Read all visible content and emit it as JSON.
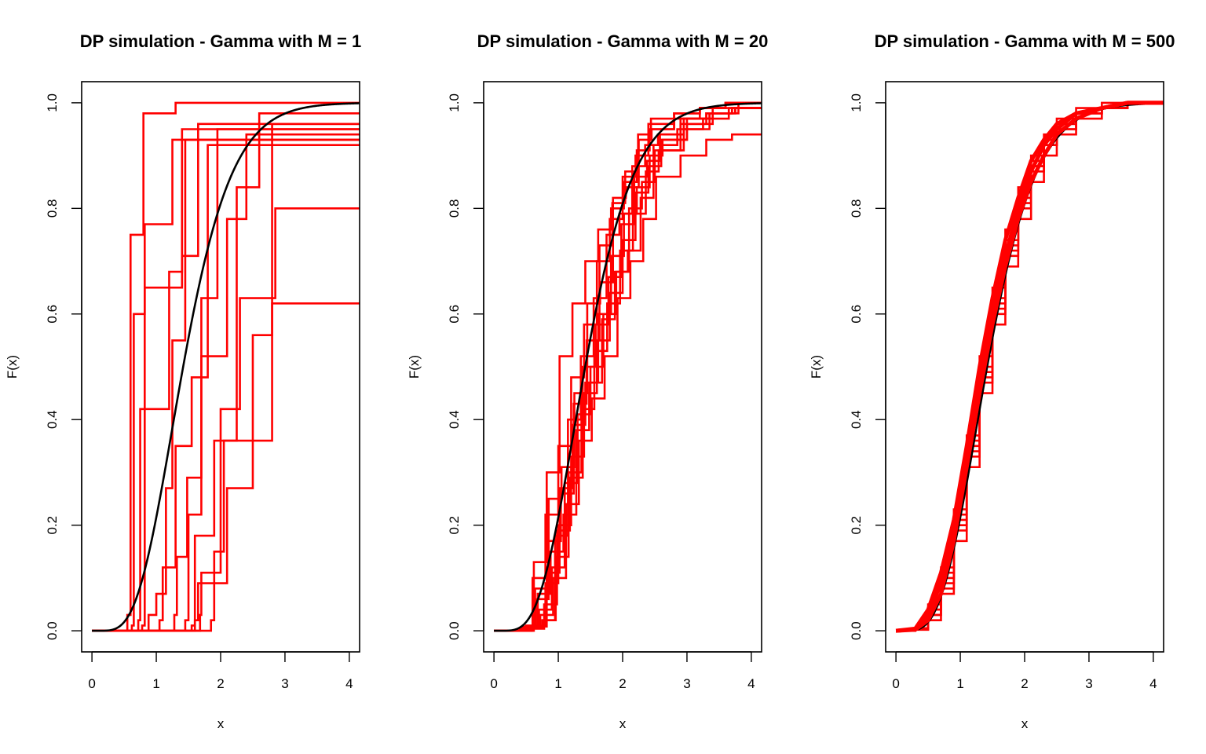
{
  "figure_background": "#ffffff",
  "chart_data": [
    {
      "type": "line",
      "title": "DP simulation - Gamma with M = 1",
      "xlabel": "x",
      "ylabel": "F(x)",
      "xlim": [
        -0.16,
        4.16
      ],
      "ylim": [
        -0.04,
        1.04
      ],
      "xticks": [
        "0",
        "1",
        "2",
        "3",
        "4"
      ],
      "yticks": [
        "0.0",
        "0.2",
        "0.4",
        "0.6",
        "0.8",
        "1.0"
      ],
      "grid": false,
      "legend": "none",
      "reference_curve": {
        "color": "#000000",
        "distribution": "Gamma",
        "shape": 6,
        "rate": 4
      },
      "simulation_color": "#ff0000",
      "simulations": [
        {
          "x": [
            0,
            0.55,
            0.6,
            0.8,
            1.3,
            4.2
          ],
          "y": [
            0,
            0.03,
            0.75,
            0.98,
            1,
            1
          ]
        },
        {
          "x": [
            0,
            0.62,
            0.65,
            0.82,
            1.25,
            4.2
          ],
          "y": [
            0,
            0.01,
            0.6,
            0.77,
            0.93,
            1
          ]
        },
        {
          "x": [
            0,
            0.72,
            0.75,
            1.2,
            1.4,
            4.2
          ],
          "y": [
            0,
            0.02,
            0.42,
            0.68,
            0.95,
            1
          ]
        },
        {
          "x": [
            0,
            0.78,
            0.82,
            1.4,
            1.65,
            4.2
          ],
          "y": [
            0,
            0.01,
            0.65,
            0.71,
            0.96,
            1
          ]
        },
        {
          "x": [
            0,
            0.88,
            1.0,
            1.15,
            1.25,
            1.45,
            4.2
          ],
          "y": [
            0,
            0.03,
            0.07,
            0.27,
            0.55,
            0.93,
            1
          ]
        },
        {
          "x": [
            0,
            1.05,
            1.1,
            1.3,
            1.55,
            1.8,
            4.2
          ],
          "y": [
            0,
            0.02,
            0.12,
            0.35,
            0.48,
            0.92,
            1
          ]
        },
        {
          "x": [
            0,
            1.28,
            1.32,
            1.48,
            1.7,
            1.95,
            4.2
          ],
          "y": [
            0,
            0.03,
            0.14,
            0.29,
            0.63,
            0.95,
            1
          ]
        },
        {
          "x": [
            0,
            1.45,
            1.5,
            1.7,
            2.1,
            2.4,
            4.2
          ],
          "y": [
            0,
            0.02,
            0.22,
            0.52,
            0.78,
            0.94,
            1
          ]
        },
        {
          "x": [
            0,
            1.55,
            1.6,
            1.9,
            2.25,
            2.6,
            4.2
          ],
          "y": [
            0,
            0.01,
            0.18,
            0.36,
            0.84,
            0.98,
            1
          ]
        },
        {
          "x": [
            0,
            1.6,
            1.65,
            2.1,
            2.5,
            2.8,
            4.2
          ],
          "y": [
            0,
            0.02,
            0.09,
            0.27,
            0.56,
            0.96,
            1
          ]
        },
        {
          "x": [
            0,
            1.68,
            1.7,
            2.0,
            2.3,
            2.85,
            4.2
          ],
          "y": [
            0,
            0.03,
            0.11,
            0.42,
            0.63,
            0.8,
            1
          ]
        },
        {
          "x": [
            0,
            1.85,
            1.9,
            2.05,
            2.8,
            3.55,
            4.2
          ],
          "y": [
            0,
            0.02,
            0.15,
            0.36,
            0.62,
            0.62,
            1
          ]
        }
      ]
    },
    {
      "type": "line",
      "title": "DP simulation - Gamma with M = 20",
      "xlabel": "x",
      "ylabel": "F(x)",
      "xlim": [
        -0.16,
        4.16
      ],
      "ylim": [
        -0.04,
        1.04
      ],
      "xticks": [
        "0",
        "1",
        "2",
        "3",
        "4"
      ],
      "yticks": [
        "0.0",
        "0.2",
        "0.4",
        "0.6",
        "0.8",
        "1.0"
      ],
      "grid": false,
      "legend": "none",
      "reference_curve": {
        "color": "#000000",
        "distribution": "Gamma",
        "shape": 6,
        "rate": 4
      },
      "simulation_color": "#ff0000",
      "simulations": [
        {
          "x": [
            0,
            0.4,
            0.6,
            0.8,
            1.0,
            1.2,
            1.4,
            1.6,
            1.8,
            2.0,
            2.2,
            2.4,
            2.8,
            3.2,
            3.6,
            4.2
          ],
          "y": [
            0,
            0.005,
            0.1,
            0.22,
            0.35,
            0.48,
            0.58,
            0.7,
            0.78,
            0.86,
            0.9,
            0.96,
            0.98,
            0.99,
            1.0,
            1.0
          ]
        },
        {
          "x": [
            0,
            0.45,
            0.65,
            0.85,
            1.05,
            1.25,
            1.45,
            1.65,
            1.85,
            2.05,
            2.25,
            2.45,
            2.8,
            3.2,
            3.6,
            4.2
          ],
          "y": [
            0,
            0.008,
            0.06,
            0.25,
            0.31,
            0.45,
            0.62,
            0.66,
            0.82,
            0.84,
            0.93,
            0.95,
            0.97,
            0.99,
            1.0,
            1.0
          ]
        },
        {
          "x": [
            0,
            0.5,
            0.7,
            0.9,
            1.1,
            1.3,
            1.5,
            1.7,
            1.9,
            2.1,
            2.3,
            2.5,
            2.9,
            3.3,
            3.7,
            4.2
          ],
          "y": [
            0,
            0.01,
            0.04,
            0.12,
            0.28,
            0.41,
            0.5,
            0.6,
            0.68,
            0.8,
            0.85,
            0.91,
            0.96,
            0.98,
            0.99,
            1.0
          ]
        },
        {
          "x": [
            0,
            0.55,
            0.75,
            0.95,
            1.15,
            1.35,
            1.55,
            1.75,
            1.95,
            2.15,
            2.35,
            2.55,
            2.9,
            3.3,
            3.7,
            4.2
          ],
          "y": [
            0,
            0.005,
            0.02,
            0.18,
            0.4,
            0.52,
            0.63,
            0.75,
            0.79,
            0.88,
            0.92,
            0.94,
            0.97,
            0.98,
            0.99,
            1.0
          ]
        },
        {
          "x": [
            0,
            0.6,
            0.8,
            1.0,
            1.2,
            1.4,
            1.6,
            1.8,
            2.0,
            2.2,
            2.4,
            2.6,
            3.0,
            3.4,
            3.8,
            4.2
          ],
          "y": [
            0,
            0.01,
            0.09,
            0.2,
            0.33,
            0.45,
            0.55,
            0.64,
            0.74,
            0.83,
            0.88,
            0.93,
            0.97,
            0.99,
            1.0,
            1.0
          ]
        },
        {
          "x": [
            0,
            0.42,
            0.62,
            0.82,
            1.02,
            1.22,
            1.42,
            1.62,
            1.82,
            2.02,
            2.22,
            2.42,
            2.8,
            3.2,
            3.6,
            4.2
          ],
          "y": [
            0,
            0.006,
            0.13,
            0.3,
            0.52,
            0.62,
            0.7,
            0.76,
            0.8,
            0.85,
            0.91,
            0.95,
            0.98,
            0.99,
            1.0,
            1.0
          ]
        },
        {
          "x": [
            0,
            0.48,
            0.68,
            0.88,
            1.08,
            1.28,
            1.48,
            1.68,
            1.88,
            2.08,
            2.28,
            2.48,
            2.85,
            3.25,
            3.65,
            4.2
          ],
          "y": [
            0,
            0.007,
            0.07,
            0.15,
            0.22,
            0.38,
            0.47,
            0.59,
            0.68,
            0.72,
            0.82,
            0.92,
            0.95,
            0.97,
            0.99,
            1.0
          ]
        },
        {
          "x": [
            0,
            0.52,
            0.72,
            0.92,
            1.12,
            1.32,
            1.52,
            1.72,
            1.92,
            2.12,
            2.32,
            2.52,
            2.9,
            3.3,
            3.7,
            4.2
          ],
          "y": [
            0,
            0.005,
            0.03,
            0.1,
            0.24,
            0.36,
            0.44,
            0.52,
            0.63,
            0.7,
            0.78,
            0.86,
            0.9,
            0.93,
            0.94,
            0.94
          ]
        },
        {
          "x": [
            0,
            0.58,
            0.78,
            0.98,
            1.18,
            1.38,
            1.58,
            1.78,
            1.98,
            2.18,
            2.38,
            2.58,
            2.95,
            3.35,
            3.75,
            4.2
          ],
          "y": [
            0,
            0.004,
            0.05,
            0.19,
            0.29,
            0.5,
            0.58,
            0.67,
            0.77,
            0.86,
            0.89,
            0.94,
            0.97,
            0.98,
            0.99,
            1.0
          ]
        },
        {
          "x": [
            0,
            0.62,
            0.82,
            1.02,
            1.22,
            1.42,
            1.62,
            1.82,
            2.02,
            2.22,
            2.42,
            2.62,
            3.0,
            3.4,
            3.8,
            4.2
          ],
          "y": [
            0,
            0.008,
            0.11,
            0.27,
            0.39,
            0.47,
            0.6,
            0.71,
            0.79,
            0.84,
            0.9,
            0.93,
            0.96,
            0.98,
            0.99,
            1.0
          ]
        },
        {
          "x": [
            0,
            0.44,
            0.64,
            0.84,
            1.04,
            1.24,
            1.44,
            1.64,
            1.84,
            2.04,
            2.24,
            2.44,
            2.8,
            3.2,
            3.6,
            4.2
          ],
          "y": [
            0,
            0.006,
            0.08,
            0.17,
            0.26,
            0.43,
            0.55,
            0.73,
            0.81,
            0.87,
            0.94,
            0.97,
            0.98,
            0.99,
            1.0,
            1.0
          ]
        },
        {
          "x": [
            0,
            0.56,
            0.76,
            0.96,
            1.16,
            1.36,
            1.56,
            1.76,
            1.96,
            2.16,
            2.36,
            2.56,
            2.95,
            3.35,
            3.75,
            4.2
          ],
          "y": [
            0,
            0.005,
            0.02,
            0.14,
            0.3,
            0.42,
            0.53,
            0.62,
            0.72,
            0.79,
            0.87,
            0.91,
            0.95,
            0.98,
            0.99,
            1.0
          ]
        }
      ]
    },
    {
      "type": "line",
      "title": "DP simulation - Gamma with M = 500",
      "xlabel": "x",
      "ylabel": "F(x)",
      "xlim": [
        -0.16,
        4.16
      ],
      "ylim": [
        -0.04,
        1.04
      ],
      "xticks": [
        "0",
        "1",
        "2",
        "3",
        "4"
      ],
      "yticks": [
        "0.0",
        "0.2",
        "0.4",
        "0.6",
        "0.8",
        "1.0"
      ],
      "grid": false,
      "legend": "none",
      "reference_curve": {
        "color": "#000000",
        "distribution": "Gamma",
        "shape": 6,
        "rate": 4
      },
      "simulation_color": "#ff0000",
      "simulations": [
        {
          "x": [
            0,
            0.3,
            0.5,
            0.7,
            0.9,
            1.1,
            1.3,
            1.5,
            1.7,
            1.9,
            2.1,
            2.3,
            2.5,
            2.8,
            3.2,
            3.6,
            4.2
          ],
          "y": [
            0,
            0.003,
            0.03,
            0.09,
            0.19,
            0.33,
            0.47,
            0.6,
            0.71,
            0.8,
            0.87,
            0.92,
            0.95,
            0.98,
            0.99,
            1.0,
            1.0
          ]
        },
        {
          "x": [
            0,
            0.3,
            0.5,
            0.7,
            0.9,
            1.1,
            1.3,
            1.5,
            1.7,
            1.9,
            2.1,
            2.3,
            2.5,
            2.8,
            3.2,
            3.6,
            4.2
          ],
          "y": [
            0,
            0.004,
            0.04,
            0.11,
            0.21,
            0.35,
            0.5,
            0.63,
            0.74,
            0.82,
            0.89,
            0.93,
            0.96,
            0.98,
            0.99,
            1.0,
            1.0
          ]
        },
        {
          "x": [
            0,
            0.3,
            0.5,
            0.7,
            0.9,
            1.1,
            1.3,
            1.5,
            1.7,
            1.9,
            2.1,
            2.3,
            2.5,
            2.8,
            3.2,
            3.6,
            4.2
          ],
          "y": [
            0,
            0.002,
            0.02,
            0.07,
            0.17,
            0.31,
            0.45,
            0.58,
            0.69,
            0.78,
            0.85,
            0.9,
            0.94,
            0.97,
            0.99,
            1.0,
            1.0
          ]
        },
        {
          "x": [
            0,
            0.3,
            0.5,
            0.7,
            0.9,
            1.1,
            1.3,
            1.5,
            1.7,
            1.9,
            2.1,
            2.3,
            2.5,
            2.8,
            3.2,
            3.6,
            4.2
          ],
          "y": [
            0,
            0.005,
            0.05,
            0.12,
            0.23,
            0.37,
            0.52,
            0.65,
            0.76,
            0.84,
            0.9,
            0.94,
            0.97,
            0.99,
            1.0,
            1.0,
            1.0
          ]
        },
        {
          "x": [
            0,
            0.3,
            0.5,
            0.7,
            0.9,
            1.1,
            1.3,
            1.5,
            1.7,
            1.9,
            2.1,
            2.3,
            2.5,
            2.8,
            3.2,
            3.6,
            4.2
          ],
          "y": [
            0,
            0.003,
            0.03,
            0.08,
            0.2,
            0.34,
            0.48,
            0.61,
            0.72,
            0.81,
            0.88,
            0.92,
            0.95,
            0.98,
            0.99,
            1.0,
            1.0
          ]
        },
        {
          "x": [
            0,
            0.3,
            0.5,
            0.7,
            0.9,
            1.1,
            1.3,
            1.5,
            1.7,
            1.9,
            2.1,
            2.3,
            2.5,
            2.8,
            3.2,
            3.6,
            4.2
          ],
          "y": [
            0,
            0.004,
            0.04,
            0.1,
            0.22,
            0.36,
            0.49,
            0.62,
            0.73,
            0.83,
            0.88,
            0.93,
            0.96,
            0.98,
            0.99,
            1.0,
            1.0
          ]
        }
      ]
    }
  ]
}
